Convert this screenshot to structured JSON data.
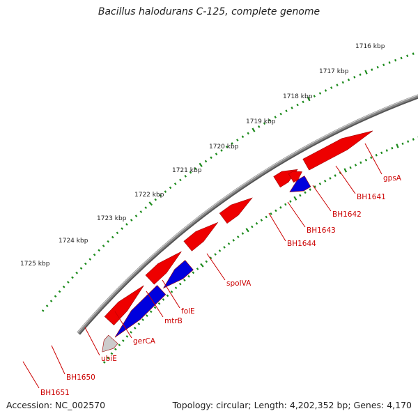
{
  "title": "Bacillus halodurans C-125, complete genome",
  "footer": {
    "accession": "Accession: NC_002570",
    "topology": "Topology: circular; Length: 4,202,352 bp; Genes: 4,170"
  },
  "colors": {
    "forward_gene": "#ee0000",
    "reverse_gene": "#0000dd",
    "cyan_gene": "#00e5ee",
    "dark_gene": "#666666",
    "light_gene": "#cccccc",
    "backbone": "#888888",
    "ticks": "#1b8a1b",
    "label": "#cc0000"
  },
  "kbp_labels": [
    "1716 kbp",
    "1717 kbp",
    "1718 kbp",
    "1719 kbp",
    "1720 kbp",
    "1721 kbp",
    "1722 kbp",
    "1723 kbp",
    "1724 kbp",
    "1725 kbp"
  ],
  "gene_labels": [
    "gpsA",
    "BH1641",
    "BH1642",
    "BH1643",
    "BH1644",
    "spoIVA",
    "folE",
    "mtrB",
    "gerCA",
    "ubiE",
    "BH1650",
    "BH1651"
  ]
}
